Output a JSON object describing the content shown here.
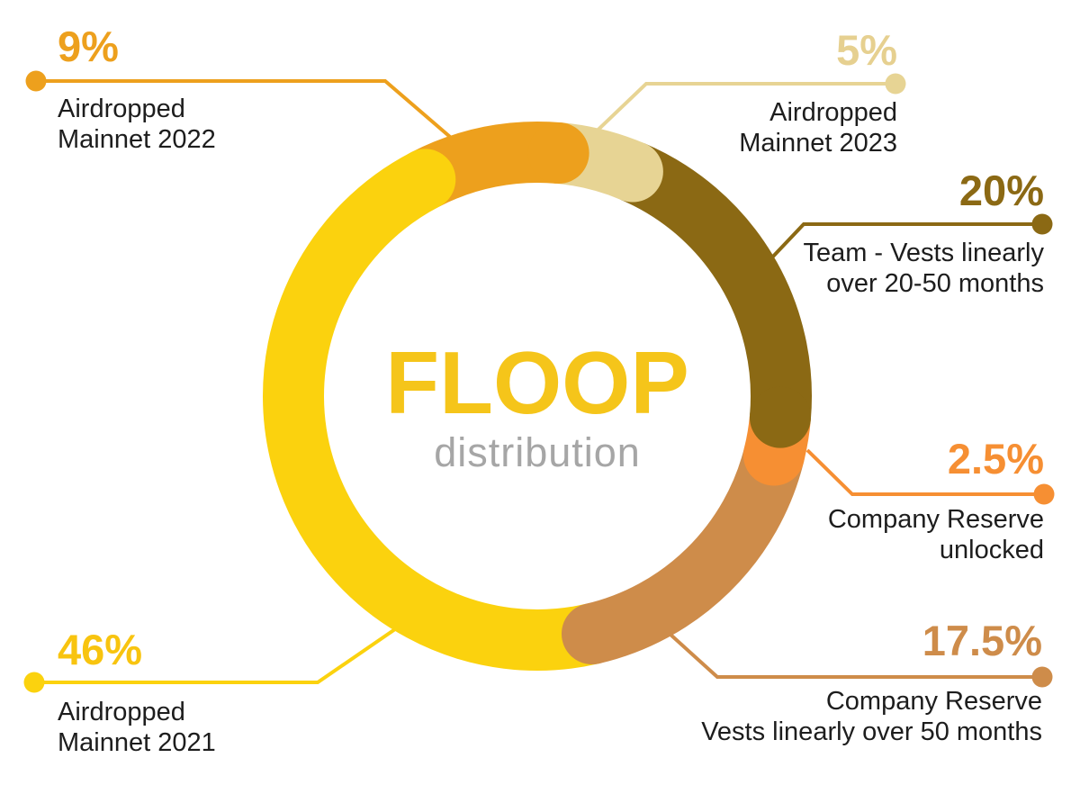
{
  "title": {
    "main": "FLOOP",
    "sub": "distribution"
  },
  "chart_data": {
    "type": "pie",
    "variant": "donut",
    "title": "FLOOP distribution",
    "start_angle_deg": 5,
    "direction": "clockwise",
    "total": 100,
    "segments": [
      {
        "id": "airdrop2023",
        "label": "Airdropped Mainnet 2023",
        "value": 5,
        "display": "5%",
        "color": "#E7D494"
      },
      {
        "id": "team",
        "label": "Team - Vests linearly over 20-50 months",
        "value": 20,
        "display": "20%",
        "color": "#8B6914"
      },
      {
        "id": "reserveUnlocked",
        "label": "Company Reserve unlocked",
        "value": 2.5,
        "display": "2.5%",
        "color": "#F68F33"
      },
      {
        "id": "reserveVesting",
        "label": "Company Reserve Vests linearly over 50 months",
        "value": 17.5,
        "display": "17.5%",
        "color": "#CE8C4A"
      },
      {
        "id": "airdrop2021",
        "label": "Airdropped Mainnet 2021",
        "value": 46,
        "display": "46%",
        "color": "#FBD20E"
      },
      {
        "id": "airdrop2022",
        "label": "Airdropped Mainnet 2022",
        "value": 9,
        "display": "9%",
        "color": "#EDA01D"
      }
    ]
  },
  "callouts": [
    {
      "id": "airdrop2022",
      "pct": "9%",
      "lines": [
        "Airdropped",
        "Mainnet 2022"
      ],
      "color": "#EDA01D",
      "align": "left"
    },
    {
      "id": "airdrop2023",
      "pct": "5%",
      "lines": [
        "Airdropped",
        "Mainnet 2023"
      ],
      "color": "#E6D090",
      "align": "right"
    },
    {
      "id": "team",
      "pct": "20%",
      "lines": [
        "Team - Vests linearly",
        "over 20-50 months"
      ],
      "color": "#8B6914",
      "align": "right"
    },
    {
      "id": "reserveUnlocked",
      "pct": "2.5%",
      "lines": [
        "Company Reserve",
        "unlocked"
      ],
      "color": "#F68F33",
      "align": "right"
    },
    {
      "id": "reserveVesting",
      "pct": "17.5%",
      "lines": [
        "Company Reserve",
        "Vests linearly over 50 months"
      ],
      "color": "#CE8C4A",
      "align": "right"
    },
    {
      "id": "airdrop2021",
      "pct": "46%",
      "lines": [
        "Airdropped",
        "Mainnet 2021"
      ],
      "color": "#F8C40F",
      "align": "left"
    }
  ]
}
